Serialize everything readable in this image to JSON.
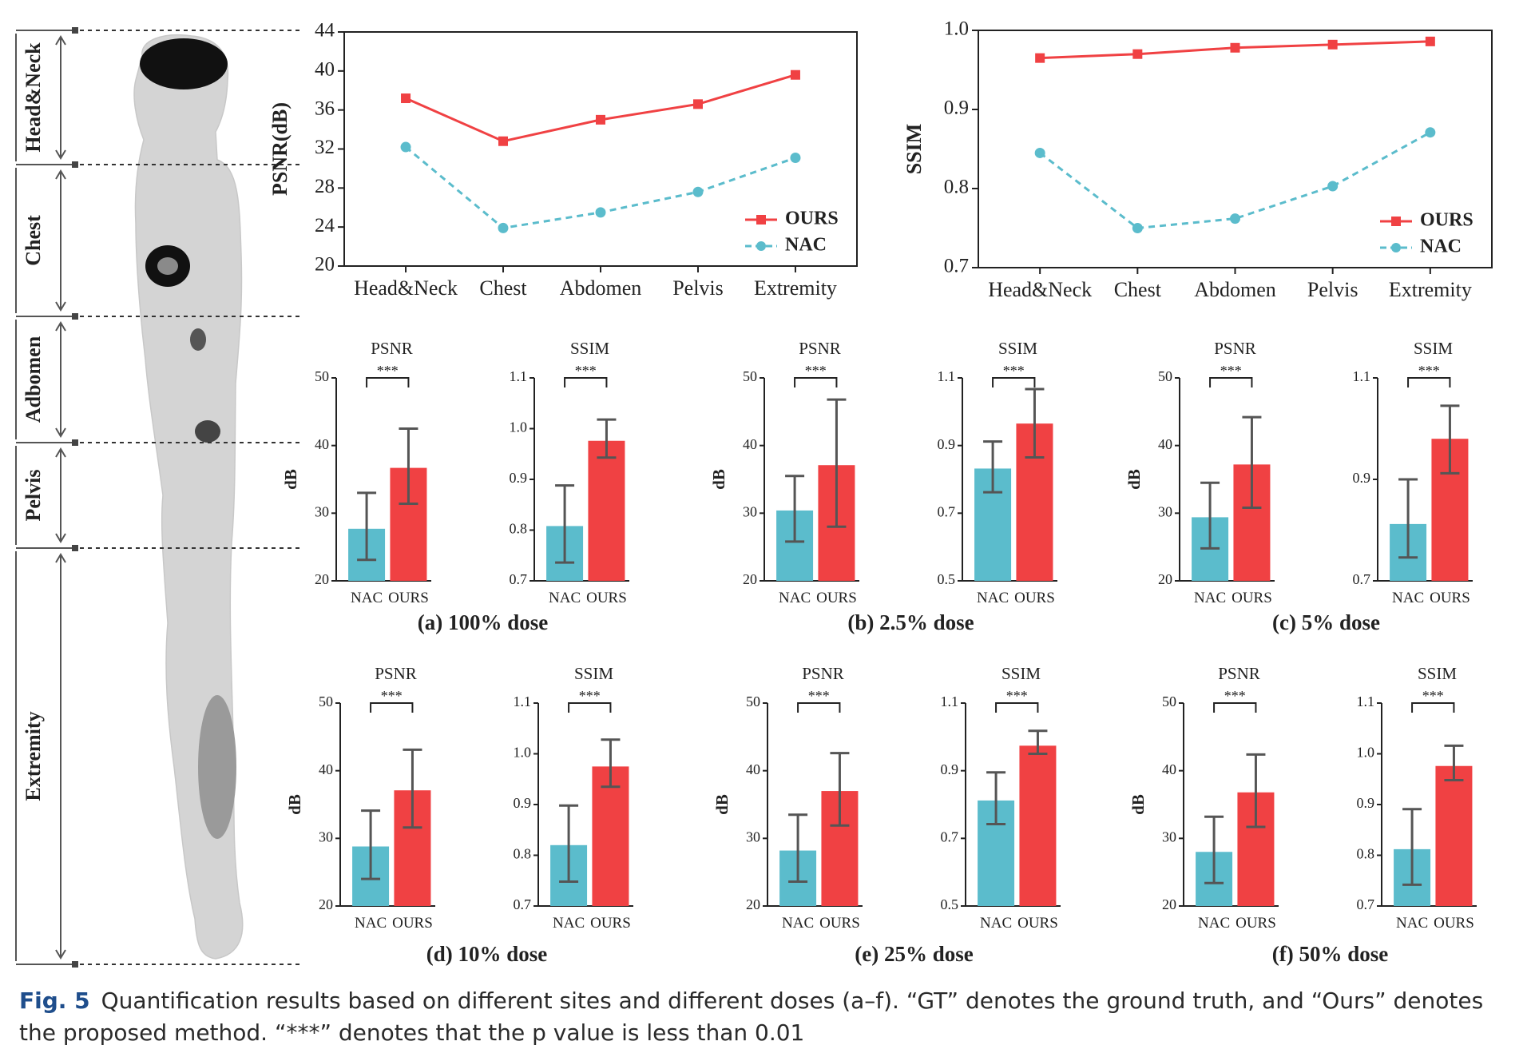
{
  "colors": {
    "ours": "#f04143",
    "nac": "#5bbccc",
    "axis": "#222222",
    "error_bar": "#555555",
    "body_dark": "#111111",
    "body_mid": "#9a9a9a",
    "body_light": "#d4d4d4"
  },
  "body_panel": {
    "regions": [
      {
        "label": "Head&Neck"
      },
      {
        "label": "Chest"
      },
      {
        "label": "Adbomen"
      },
      {
        "label": "Pelvis"
      },
      {
        "label": "Extremity"
      }
    ]
  },
  "chart_data": [
    {
      "id": "psnr-line",
      "type": "line",
      "categories": [
        "Head&Neck",
        "Chest",
        "Abdomen",
        "Pelvis",
        "Extremity"
      ],
      "ylabel": "PSNR(dB)",
      "ylim": [
        20,
        44
      ],
      "yticks": [
        20,
        24,
        28,
        32,
        36,
        40,
        44
      ],
      "legend_position": "bottom-right",
      "series": [
        {
          "name": "OURS",
          "values": [
            37.2,
            32.8,
            35.0,
            36.6,
            39.6
          ]
        },
        {
          "name": "NAC",
          "values": [
            32.2,
            23.9,
            25.5,
            27.6,
            31.1
          ]
        }
      ]
    },
    {
      "id": "ssim-line",
      "type": "line",
      "categories": [
        "Head&Neck",
        "Chest",
        "Abdomen",
        "Pelvis",
        "Extremity"
      ],
      "ylabel": "SSIM",
      "ylim": [
        0.7,
        1.0
      ],
      "yticks": [
        "0.7",
        "0.8",
        "0.9",
        "1.0"
      ],
      "legend_position": "bottom-right",
      "series": [
        {
          "name": "OURS",
          "values": [
            0.965,
            0.97,
            0.978,
            0.982,
            0.986
          ]
        },
        {
          "name": "NAC",
          "values": [
            0.845,
            0.75,
            0.762,
            0.803,
            0.871
          ]
        }
      ]
    },
    {
      "id": "a-psnr",
      "type": "bar",
      "title": "PSNR",
      "ylabel": "dB",
      "ylim": [
        20,
        50
      ],
      "yticks": [
        "20",
        "30",
        "40",
        "50"
      ],
      "categories": [
        "NAC",
        "OURS"
      ],
      "values": [
        27.7,
        36.7
      ],
      "errors_low": [
        23.1,
        31.4
      ],
      "errors_high": [
        33.0,
        42.5
      ],
      "annotation": "***"
    },
    {
      "id": "a-ssim",
      "type": "bar",
      "title": "SSIM",
      "ylabel": "",
      "ylim": [
        0.7,
        1.1
      ],
      "yticks": [
        "0.7",
        "0.8",
        "0.9",
        "1.0",
        "1.1"
      ],
      "categories": [
        "NAC",
        "OURS"
      ],
      "values": [
        0.808,
        0.976
      ],
      "errors_low": [
        0.736,
        0.943
      ],
      "errors_high": [
        0.888,
        1.018
      ],
      "annotation": "***"
    },
    {
      "id": "b-psnr",
      "type": "bar",
      "title": "PSNR",
      "ylabel": "dB",
      "ylim": [
        20,
        50
      ],
      "yticks": [
        "20",
        "30",
        "40",
        "50"
      ],
      "categories": [
        "NAC",
        "OURS"
      ],
      "values": [
        30.4,
        37.1
      ],
      "errors_low": [
        25.8,
        28.0
      ],
      "errors_high": [
        35.5,
        46.8
      ],
      "annotation": "***"
    },
    {
      "id": "b-ssim",
      "type": "bar",
      "title": "SSIM",
      "ylabel": "",
      "ylim": [
        0.5,
        1.1
      ],
      "yticks": [
        "0.5",
        "0.7",
        "0.9",
        "1.1"
      ],
      "categories": [
        "NAC",
        "OURS"
      ],
      "values": [
        0.832,
        0.965
      ],
      "errors_low": [
        0.762,
        0.865
      ],
      "errors_high": [
        0.912,
        1.067
      ],
      "annotation": "***"
    },
    {
      "id": "c-psnr",
      "type": "bar",
      "title": "PSNR",
      "ylabel": "dB",
      "ylim": [
        20,
        50
      ],
      "yticks": [
        "20",
        "30",
        "40",
        "50"
      ],
      "categories": [
        "NAC",
        "OURS"
      ],
      "values": [
        29.4,
        37.2
      ],
      "errors_low": [
        24.8,
        30.8
      ],
      "errors_high": [
        34.5,
        44.2
      ],
      "annotation": "***"
    },
    {
      "id": "c-ssim",
      "type": "bar",
      "title": "SSIM",
      "ylabel": "",
      "ylim": [
        0.7,
        1.1
      ],
      "yticks": [
        "0.7",
        "0.9",
        "1.1"
      ],
      "categories": [
        "NAC",
        "OURS"
      ],
      "values": [
        0.812,
        0.98
      ],
      "errors_low": [
        0.746,
        0.912
      ],
      "errors_high": [
        0.9,
        1.045
      ],
      "annotation": "***"
    },
    {
      "id": "d-psnr",
      "type": "bar",
      "title": "PSNR",
      "ylabel": "dB",
      "ylim": [
        20,
        50
      ],
      "yticks": [
        "20",
        "30",
        "40",
        "50"
      ],
      "categories": [
        "NAC",
        "OURS"
      ],
      "values": [
        28.8,
        37.1
      ],
      "errors_low": [
        24.0,
        31.6
      ],
      "errors_high": [
        34.1,
        43.1
      ],
      "annotation": "***"
    },
    {
      "id": "d-ssim",
      "type": "bar",
      "title": "SSIM",
      "ylabel": "",
      "ylim": [
        0.7,
        1.1
      ],
      "yticks": [
        "0.7",
        "0.8",
        "0.9",
        "1.0",
        "1.1"
      ],
      "categories": [
        "NAC",
        "OURS"
      ],
      "values": [
        0.82,
        0.975
      ],
      "errors_low": [
        0.748,
        0.935
      ],
      "errors_high": [
        0.898,
        1.028
      ],
      "annotation": "***"
    },
    {
      "id": "e-psnr",
      "type": "bar",
      "title": "PSNR",
      "ylabel": "dB",
      "ylim": [
        20,
        50
      ],
      "yticks": [
        "20",
        "30",
        "40",
        "50"
      ],
      "categories": [
        "NAC",
        "OURS"
      ],
      "values": [
        28.2,
        37.0
      ],
      "errors_low": [
        23.6,
        31.9
      ],
      "errors_high": [
        33.5,
        42.6
      ],
      "annotation": "***"
    },
    {
      "id": "e-ssim",
      "type": "bar",
      "title": "SSIM",
      "ylabel": "",
      "ylim": [
        0.5,
        1.1
      ],
      "yticks": [
        "0.5",
        "0.7",
        "0.9",
        "1.1"
      ],
      "categories": [
        "NAC",
        "OURS"
      ],
      "values": [
        0.812,
        0.974
      ],
      "errors_low": [
        0.742,
        0.95
      ],
      "errors_high": [
        0.895,
        1.018
      ],
      "annotation": "***"
    },
    {
      "id": "f-psnr",
      "type": "bar",
      "title": "PSNR",
      "ylabel": "dB",
      "ylim": [
        20,
        50
      ],
      "yticks": [
        "20",
        "30",
        "40",
        "50"
      ],
      "categories": [
        "NAC",
        "OURS"
      ],
      "values": [
        28.0,
        36.8
      ],
      "errors_low": [
        23.4,
        31.7
      ],
      "errors_high": [
        33.2,
        42.4
      ],
      "annotation": "***"
    },
    {
      "id": "f-ssim",
      "type": "bar",
      "title": "SSIM",
      "ylabel": "",
      "ylim": [
        0.7,
        1.1
      ],
      "yticks": [
        "0.7",
        "0.8",
        "0.9",
        "1.0",
        "1.1"
      ],
      "categories": [
        "NAC",
        "OURS"
      ],
      "values": [
        0.812,
        0.976
      ],
      "errors_low": [
        0.742,
        0.948
      ],
      "errors_high": [
        0.891,
        1.016
      ],
      "annotation": "***"
    }
  ],
  "groups": [
    {
      "label": "(a) 100% dose"
    },
    {
      "label": "(b) 2.5% dose"
    },
    {
      "label": "(c) 5% dose"
    },
    {
      "label": "(d) 10% dose"
    },
    {
      "label": "(e) 25% dose"
    },
    {
      "label": "(f) 50% dose"
    }
  ],
  "caption": {
    "fig_label": "Fig. 5",
    "text": "Quantification results based on different sites and different doses (a–f). “GT” denotes the ground truth, and “Ours” denotes the proposed method. “***” denotes that the p value is less than 0.01"
  }
}
